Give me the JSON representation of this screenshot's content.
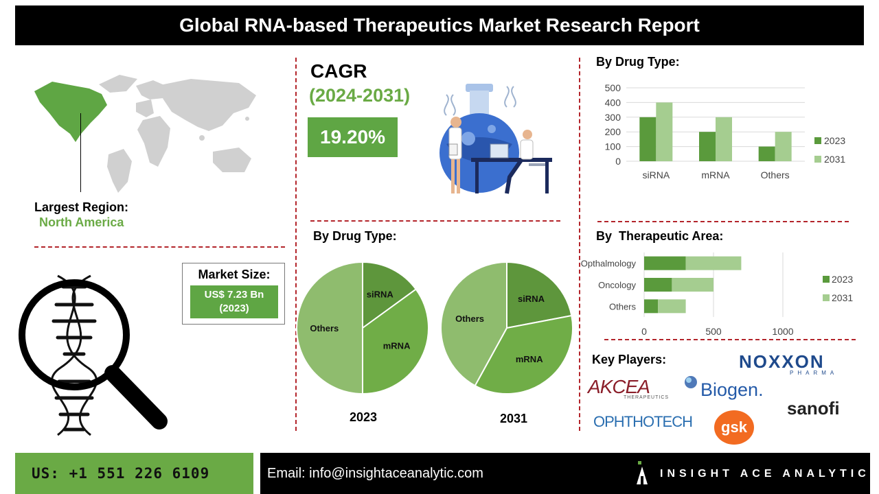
{
  "header": {
    "title": "Global RNA-based Therapeutics Market Research Report"
  },
  "region": {
    "label": "Largest Region:",
    "value": "North America"
  },
  "cagr": {
    "title": "CAGR",
    "period": "(2024-2031)",
    "value": "19.20%"
  },
  "market_size": {
    "label": "Market Size:",
    "value_line1": "US$ 7.23 Bn",
    "value_line2": "(2023)"
  },
  "key_players": {
    "label": "Key Players:",
    "logos": [
      "NOXXON",
      "PHARMA",
      "AKCEA",
      "THERAPEUTICS",
      "Biogen.",
      "sanofi",
      "OPHTHOTECH",
      "gsk"
    ]
  },
  "footer": {
    "phone": "US: +1 551 226 6109",
    "email": "Email: info@insightaceanalytic.com",
    "brand": "INSIGHT ACE ANALYTIC"
  },
  "colors": {
    "dark_green": "#5a9a3c",
    "light_green": "#a5cd90",
    "pie_dark": "#5e963c",
    "pie_mid": "#70ad47",
    "pie_light": "#8fbc6e",
    "dash_red": "#b3242a"
  },
  "chart_data": [
    {
      "type": "bar",
      "title": "By Drug Type:",
      "categories": [
        "siRNA",
        "mRNA",
        "Others"
      ],
      "series": [
        {
          "name": "2023",
          "values": [
            300,
            200,
            100
          ]
        },
        {
          "name": "2031",
          "values": [
            400,
            300,
            200
          ]
        }
      ],
      "ylim": [
        0,
        500
      ],
      "yticks": [
        0,
        100,
        200,
        300,
        400,
        500
      ],
      "grid": true,
      "legend": "right"
    },
    {
      "type": "pie",
      "title": "By Drug Type:",
      "caption": "2023",
      "labels": [
        "siRNA",
        "mRNA",
        "Others"
      ],
      "values": [
        15,
        35,
        50
      ]
    },
    {
      "type": "pie",
      "caption": "2031",
      "labels": [
        "siRNA",
        "mRNA",
        "Others"
      ],
      "values": [
        22,
        36,
        42
      ]
    },
    {
      "type": "bar",
      "orientation": "horizontal",
      "stacked": true,
      "title": "By  Therapeutic Area:",
      "categories": [
        "Opthalmology",
        "Oncology",
        "Others"
      ],
      "series": [
        {
          "name": "2023",
          "values": [
            300,
            200,
            100
          ]
        },
        {
          "name": "2031",
          "values": [
            400,
            300,
            200
          ]
        }
      ],
      "xlim": [
        0,
        1000
      ],
      "xticks": [
        0,
        500,
        1000
      ],
      "grid": true,
      "legend": "right"
    }
  ]
}
